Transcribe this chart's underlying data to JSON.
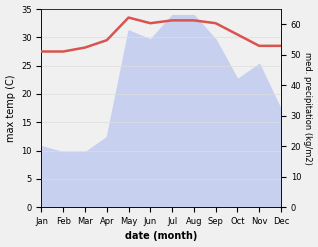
{
  "months": [
    "Jan",
    "Feb",
    "Mar",
    "Apr",
    "May",
    "Jun",
    "Jul",
    "Aug",
    "Sep",
    "Oct",
    "Nov",
    "Dec"
  ],
  "x": [
    1,
    2,
    3,
    4,
    5,
    6,
    7,
    8,
    9,
    10,
    11,
    12
  ],
  "temperature": [
    27.5,
    27.5,
    28.2,
    29.5,
    33.5,
    32.5,
    33.0,
    33.0,
    32.5,
    30.5,
    28.5,
    28.5
  ],
  "precipitation": [
    20,
    18,
    18,
    23,
    58,
    55,
    63,
    63,
    55,
    42,
    47,
    32
  ],
  "temp_color": "#d9534f",
  "precip_fill_color": "#c8d0f0",
  "ylabel_left": "max temp (C)",
  "ylabel_right": "med. precipitation (kg/m2)",
  "xlabel": "date (month)",
  "ylim_left": [
    0,
    35
  ],
  "ylim_right": [
    0,
    65
  ],
  "yticks_left": [
    0,
    5,
    10,
    15,
    20,
    25,
    30,
    35
  ],
  "yticks_right": [
    0,
    10,
    20,
    30,
    40,
    50,
    60
  ],
  "bg_color": "#f0f0f0"
}
